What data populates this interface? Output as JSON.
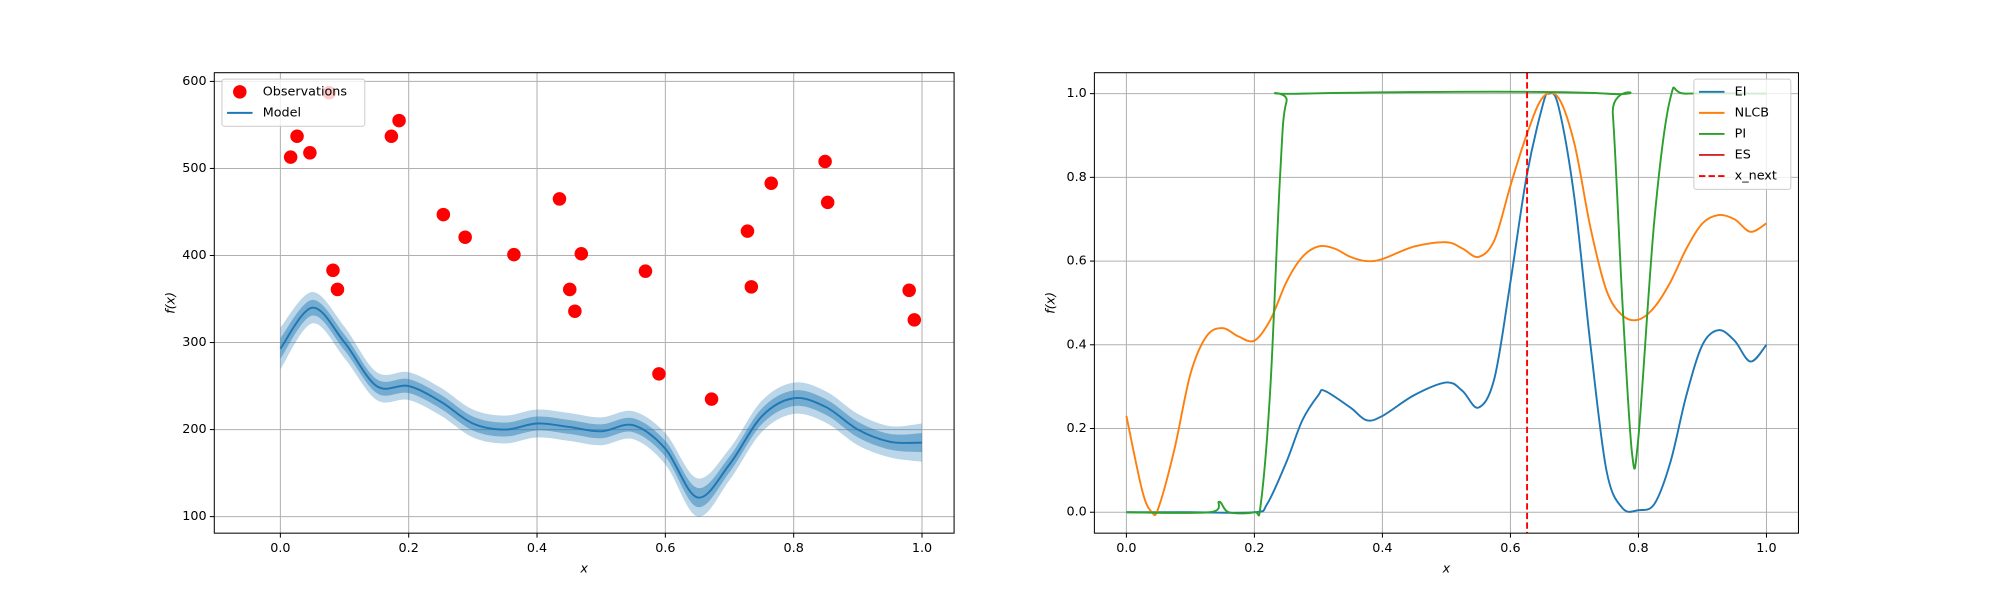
{
  "chart_data": [
    {
      "type": "line",
      "xlabel": "x",
      "ylabel": "f(x)",
      "legend": "upper left",
      "grid": true,
      "xlim": [
        -0.103,
        1.05
      ],
      "ylim": [
        81,
        610
      ],
      "xticks": [
        {
          "value": 0,
          "label": "0.0"
        },
        0.2,
        0.4,
        0.6,
        0.8,
        {
          "value": 1,
          "label": "1.0"
        }
      ],
      "yticks": [
        100,
        200,
        300,
        400,
        500,
        600
      ],
      "series": [
        {
          "name": "Observations",
          "type": "scatter",
          "color": "#ff0000",
          "x": [
            0.016,
            0.026,
            0.046,
            0.076,
            0.082,
            0.089,
            0.173,
            0.185,
            0.254,
            0.288,
            0.364,
            0.435,
            0.451,
            0.459,
            0.469,
            0.569,
            0.59,
            0.672,
            0.728,
            0.734,
            0.765,
            0.849,
            0.853,
            0.98,
            0.988
          ],
          "values": [
            513,
            537,
            518,
            587,
            383,
            361,
            537,
            555,
            447,
            421,
            401,
            465,
            361,
            336,
            402,
            382,
            264,
            235,
            428,
            364,
            483,
            508,
            461,
            360,
            326
          ]
        },
        {
          "name": "Model",
          "type": "line",
          "color": "#1f77b4",
          "x": [
            0,
            0.05,
            0.1,
            0.15,
            0.2,
            0.25,
            0.3,
            0.35,
            0.4,
            0.45,
            0.5,
            0.55,
            0.6,
            0.65,
            0.7,
            0.75,
            0.8,
            0.85,
            0.9,
            0.95,
            1
          ],
          "values": [
            293,
            340,
            300,
            250,
            250,
            232,
            207,
            200,
            207,
            203,
            198,
            205,
            178,
            122,
            160,
            215,
            236,
            226,
            200,
            186,
            185
          ],
          "std": [
            12,
            9,
            9,
            8,
            8,
            8,
            8,
            8,
            8,
            8,
            8,
            8,
            9,
            11,
            9,
            9,
            9,
            9,
            9,
            9,
            11
          ]
        }
      ]
    },
    {
      "type": "line",
      "xlabel": "x",
      "ylabel": "f(x)",
      "legend": "upper right",
      "grid": true,
      "xlim": [
        -0.05,
        1.05
      ],
      "ylim": [
        -0.05,
        1.05
      ],
      "xticks": [
        {
          "value": 0,
          "label": "0.0"
        },
        0.2,
        0.4,
        0.6,
        0.8,
        {
          "value": 1,
          "label": "1.0"
        }
      ],
      "yticks": [
        {
          "value": 0,
          "label": "0.0"
        },
        0.2,
        0.4,
        0.6,
        0.8,
        {
          "value": 1,
          "label": "1.0"
        }
      ],
      "series": [
        {
          "name": "EI",
          "type": "line",
          "color": "#1f77b4",
          "x": [
            0,
            0.1,
            0.2,
            0.22,
            0.25,
            0.275,
            0.3,
            0.31,
            0.35,
            0.375,
            0.4,
            0.45,
            0.5,
            0.525,
            0.55,
            0.575,
            0.6,
            0.625,
            0.65,
            0.66,
            0.675,
            0.7,
            0.725,
            0.75,
            0.775,
            0.8,
            0.825,
            0.85,
            0.875,
            0.9,
            0.925,
            0.95,
            0.975,
            1
          ],
          "values": [
            0,
            0,
            0,
            0.02,
            0.12,
            0.22,
            0.28,
            0.29,
            0.25,
            0.22,
            0.23,
            0.28,
            0.31,
            0.29,
            0.25,
            0.32,
            0.55,
            0.8,
            0.97,
            1,
            0.97,
            0.75,
            0.4,
            0.1,
            0.01,
            0.005,
            0.02,
            0.12,
            0.28,
            0.4,
            0.435,
            0.41,
            0.36,
            0.4
          ]
        },
        {
          "name": "NLCB",
          "type": "line",
          "color": "#ff7f0e",
          "x": [
            0,
            0.025,
            0.04,
            0.05,
            0.075,
            0.1,
            0.125,
            0.15,
            0.175,
            0.2,
            0.225,
            0.25,
            0.275,
            0.3,
            0.325,
            0.35,
            0.375,
            0.4,
            0.45,
            0.5,
            0.525,
            0.55,
            0.575,
            0.6,
            0.625,
            0.65,
            0.675,
            0.7,
            0.725,
            0.75,
            0.775,
            0.8,
            0.825,
            0.85,
            0.875,
            0.9,
            0.925,
            0.95,
            0.975,
            1
          ],
          "values": [
            0.23,
            0.05,
            0,
            0.01,
            0.15,
            0.33,
            0.42,
            0.44,
            0.42,
            0.41,
            0.46,
            0.55,
            0.61,
            0.635,
            0.63,
            0.61,
            0.6,
            0.605,
            0.635,
            0.645,
            0.63,
            0.61,
            0.65,
            0.78,
            0.9,
            0.99,
            0.99,
            0.88,
            0.68,
            0.53,
            0.47,
            0.46,
            0.49,
            0.55,
            0.63,
            0.69,
            0.71,
            0.7,
            0.67,
            0.69
          ]
        },
        {
          "name": "PI",
          "type": "line",
          "color": "#2ca02c",
          "x": [
            0,
            0.13,
            0.145,
            0.16,
            0.2,
            0.21,
            0.225,
            0.24,
            0.25,
            0.275,
            0.75,
            0.76,
            0.775,
            0.79,
            0.8,
            0.825,
            0.85,
            0.875,
            1
          ],
          "values": [
            0,
            0,
            0.025,
            0,
            0,
            0.02,
            0.3,
            0.8,
            0.98,
            1,
            1,
            0.95,
            0.5,
            0.14,
            0.18,
            0.7,
            0.99,
            1,
            1
          ]
        },
        {
          "name": "ES",
          "type": "line",
          "color": "#d62728",
          "x": [],
          "values": []
        },
        {
          "name": "x_next",
          "type": "vline",
          "color": "#ff0000",
          "style": "dashed",
          "x": 0.626
        }
      ]
    }
  ]
}
